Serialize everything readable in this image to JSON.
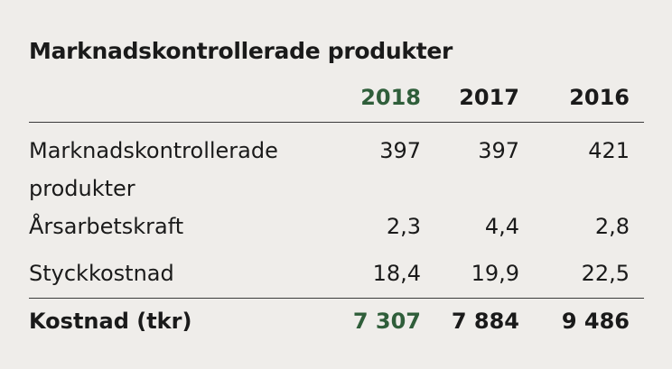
{
  "title": "Marknadskontrollerade produkter",
  "headers": [
    "",
    "2018",
    "2017",
    "2016"
  ],
  "rows": [
    {
      "label": "Marknadskontrollerade produkter",
      "values": [
        "397",
        "397",
        "421"
      ]
    },
    {
      "label": "Årsarbetskraft",
      "values": [
        "2,3",
        "4,4",
        "2,8"
      ]
    },
    {
      "label": "Styckkostnad",
      "values": [
        "18,4",
        "19,9",
        "22,5"
      ]
    }
  ],
  "total": {
    "label": "Kostnad (tkr)",
    "values": [
      "7 307",
      "7 884",
      "9 486"
    ]
  },
  "colors": {
    "background": "#efedea",
    "accent": "#2f5e3a",
    "text": "#1a1a1a",
    "rule": "#3a3a3a"
  }
}
